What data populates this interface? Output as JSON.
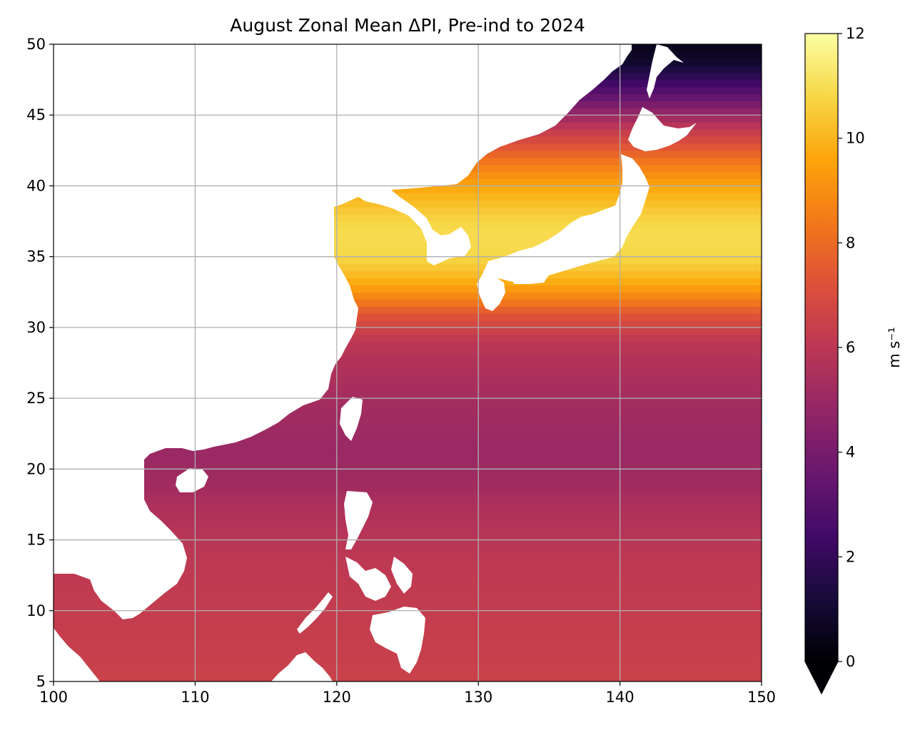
{
  "chart_data": {
    "type": "heatmap",
    "title": "August Zonal Mean ΔPI, Pre-ind to 2024",
    "xlim": [
      100,
      150
    ],
    "ylim": [
      5,
      50
    ],
    "x_ticks": [
      "100",
      "110",
      "120",
      "130",
      "140",
      "150"
    ],
    "y_ticks": [
      "5",
      "10",
      "15",
      "20",
      "25",
      "30",
      "35",
      "40",
      "45",
      "50"
    ],
    "grid": true,
    "colormap": "inferno",
    "colorbar": {
      "label": "m s⁻¹",
      "range": [
        0,
        12
      ],
      "ticks": [
        "0",
        "2",
        "4",
        "6",
        "8",
        "10",
        "12"
      ],
      "extend": "min"
    },
    "zonal_mean_profile": {
      "latitude": [
        5,
        7,
        9,
        11,
        13,
        15,
        17,
        19,
        21,
        23,
        25,
        27,
        29,
        30,
        31,
        32,
        33,
        34,
        35,
        36,
        37,
        38,
        39,
        40,
        41,
        42,
        43,
        44,
        45,
        46,
        47,
        48,
        49,
        50
      ],
      "delta_pi": [
        6.5,
        6.4,
        6.3,
        6.2,
        6.1,
        5.9,
        5.6,
        5.2,
        5.0,
        5.1,
        5.3,
        5.6,
        6.0,
        6.6,
        7.4,
        8.6,
        9.6,
        10.3,
        10.8,
        10.9,
        10.9,
        10.6,
        10.1,
        9.6,
        8.9,
        8.1,
        7.1,
        6.2,
        5.0,
        3.8,
        2.6,
        1.6,
        0.8,
        0.5
      ]
    },
    "land_color": "#ffffff"
  }
}
